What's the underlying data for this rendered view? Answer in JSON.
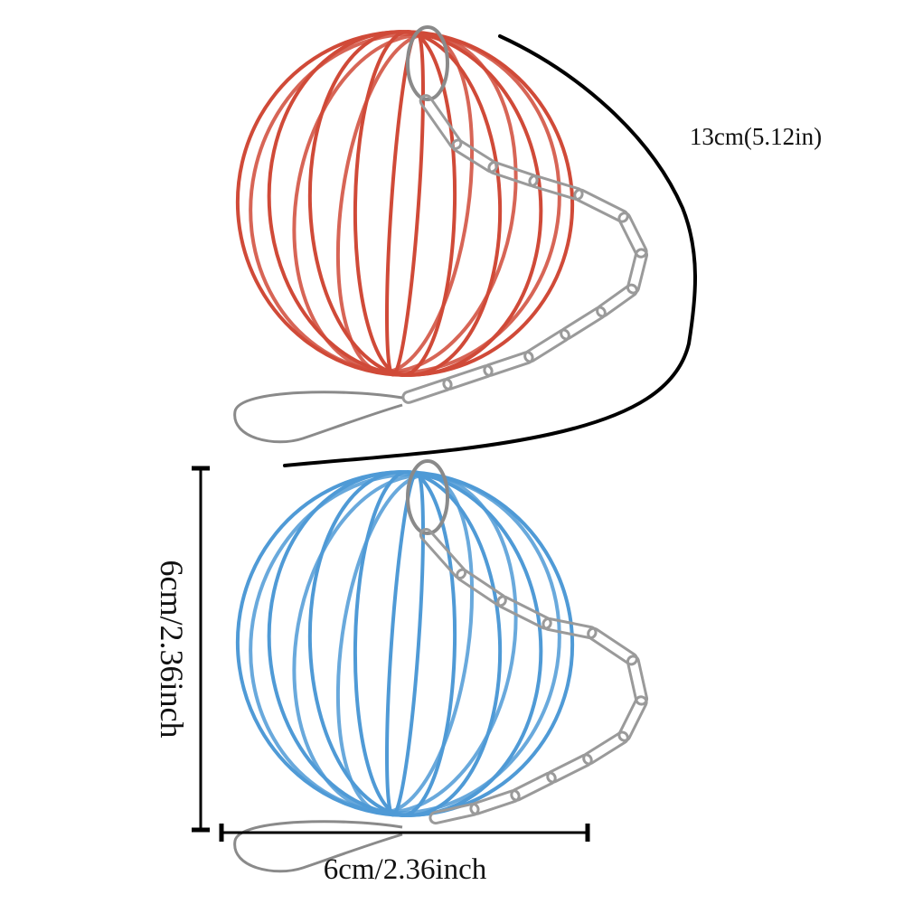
{
  "annotations": {
    "chain_length": "13cm(5.12in)",
    "height": "6cm/2.36inch",
    "width": "6cm/2.36inch"
  }
}
